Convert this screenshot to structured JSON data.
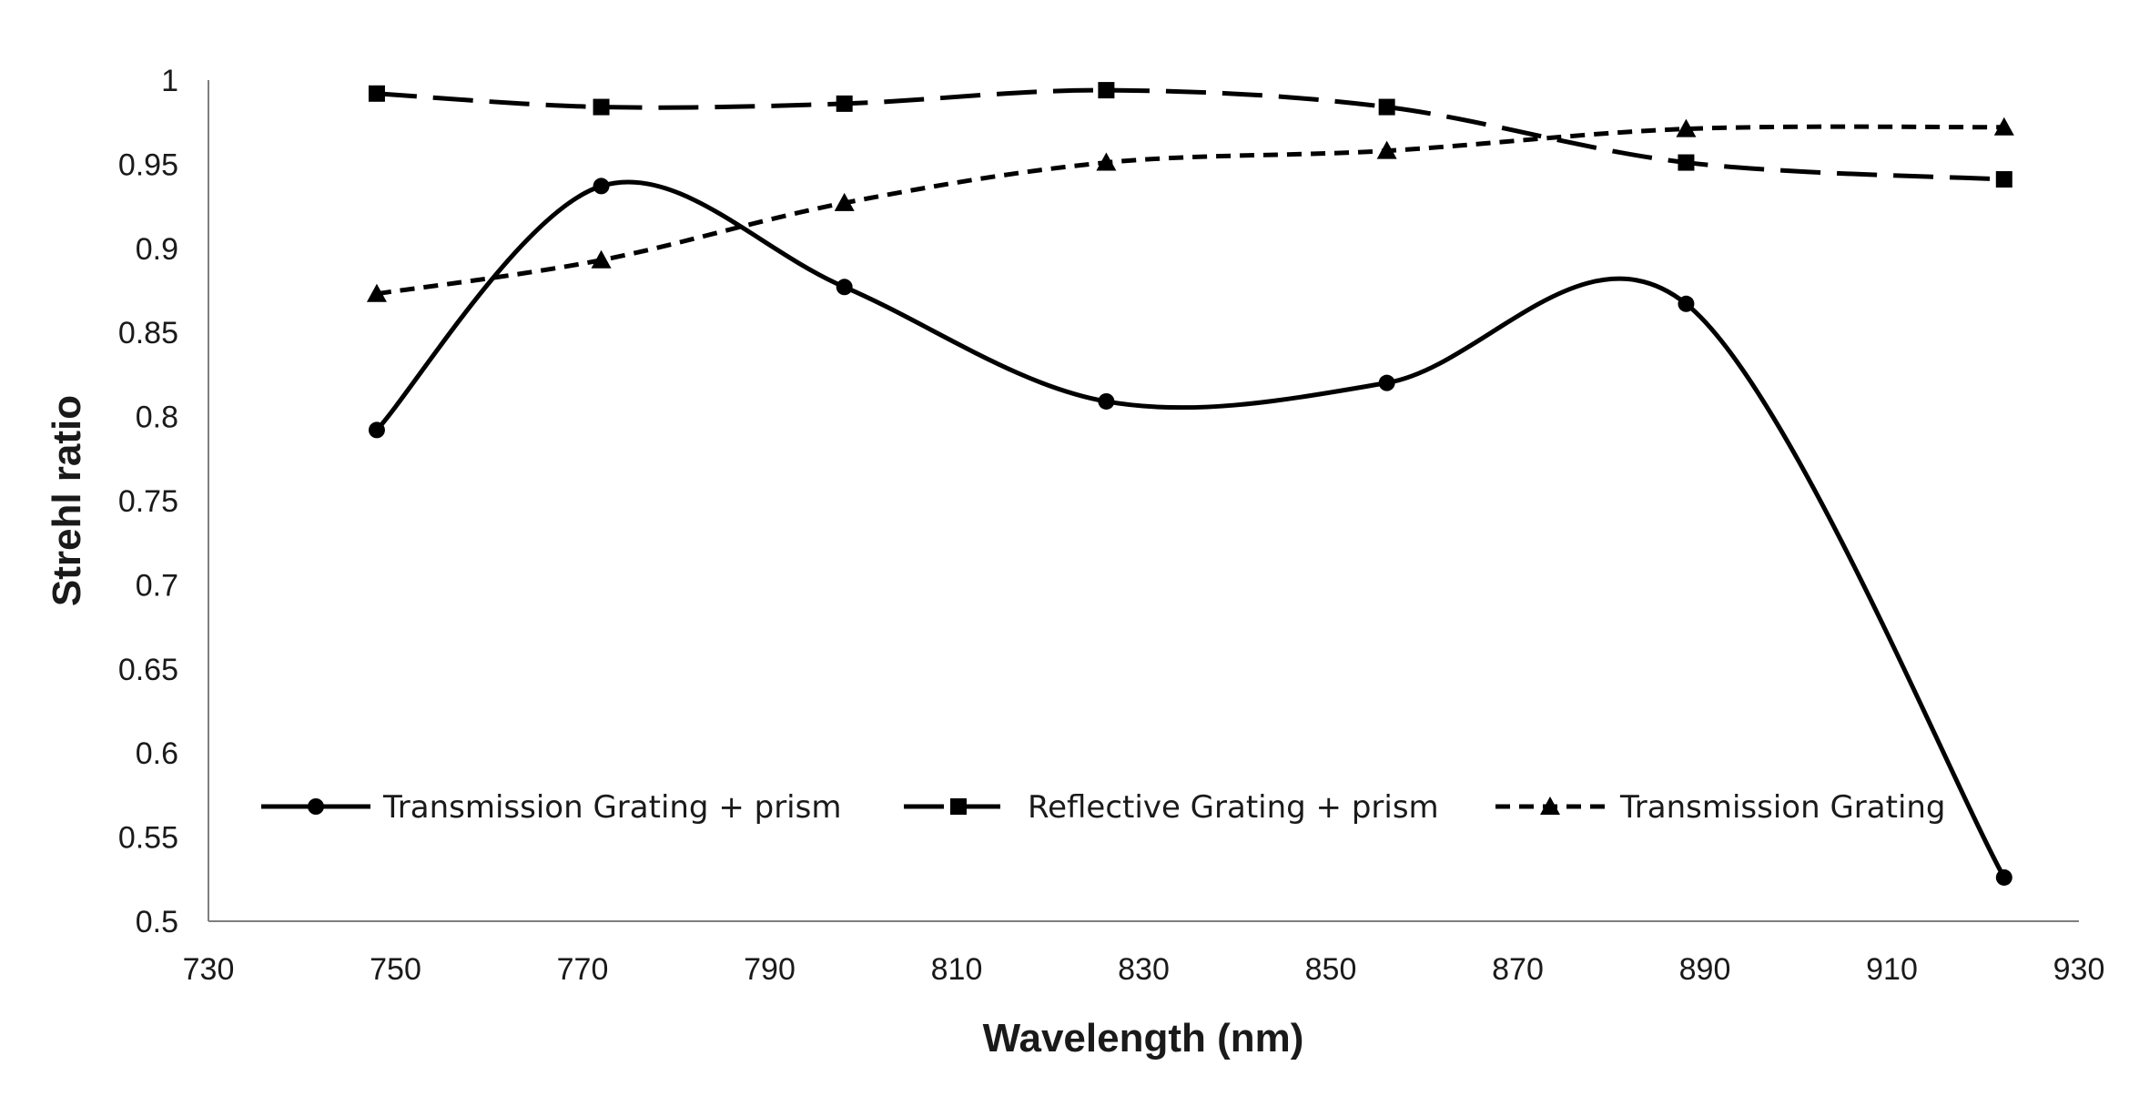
{
  "chart_data": {
    "type": "line",
    "title": "",
    "xlabel": "Wavelength (nm)",
    "ylabel": "Strehl ratio",
    "xlim": [
      730,
      930
    ],
    "ylim": [
      0.5,
      1
    ],
    "xticks": [
      730,
      750,
      770,
      790,
      810,
      830,
      850,
      870,
      890,
      910,
      930
    ],
    "yticks": [
      0.5,
      0.55,
      0.6,
      0.65,
      0.7,
      0.75,
      0.8,
      0.85,
      0.9,
      0.95,
      1
    ],
    "xtick_labels": [
      "730",
      "750",
      "770",
      "790",
      "810",
      "830",
      "850",
      "870",
      "890",
      "910",
      "930"
    ],
    "ytick_labels": [
      "0.5",
      "0.55",
      "0.6",
      "0.65",
      "0.7",
      "0.75",
      "0.8",
      "0.85",
      "0.9",
      "0.95",
      "1"
    ],
    "grid": false,
    "legend_position": "lower-center-inside",
    "series": [
      {
        "name": "Transmission Grating + prism",
        "style": "solid",
        "marker": "circle",
        "smooth": true,
        "color": "#000000",
        "x": [
          748,
          772,
          798,
          826,
          856,
          888,
          922
        ],
        "y": [
          0.792,
          0.937,
          0.877,
          0.809,
          0.82,
          0.867,
          0.526
        ]
      },
      {
        "name": "Reflective Grating + prism",
        "style": "long-dash",
        "marker": "square",
        "smooth": true,
        "color": "#000000",
        "x": [
          748,
          772,
          798,
          826,
          856,
          888,
          922
        ],
        "y": [
          0.992,
          0.984,
          0.986,
          0.994,
          0.984,
          0.951,
          0.941
        ]
      },
      {
        "name": "Transmission Grating",
        "style": "short-dash",
        "marker": "triangle",
        "smooth": true,
        "color": "#000000",
        "x": [
          748,
          772,
          798,
          826,
          856,
          888,
          922
        ],
        "y": [
          0.873,
          0.893,
          0.927,
          0.951,
          0.958,
          0.971,
          0.972
        ]
      }
    ]
  }
}
